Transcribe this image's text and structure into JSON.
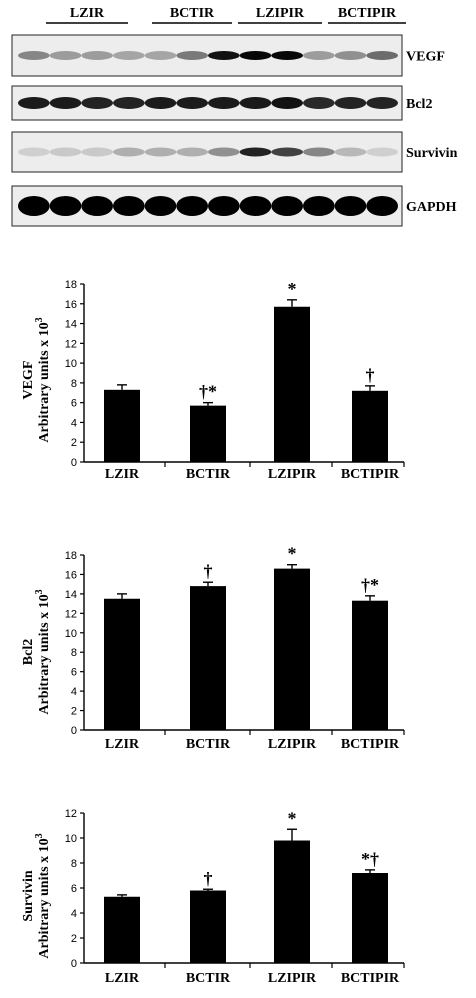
{
  "blot": {
    "group_labels": [
      "LZIR",
      "BCTIR",
      "LZIPIR",
      "BCTIPIR"
    ],
    "bands": [
      {
        "label": "VEGF",
        "intensity": [
          0.55,
          0.45,
          0.45,
          0.4,
          0.4,
          0.6,
          0.95,
          0.98,
          0.98,
          0.45,
          0.5,
          0.65
        ]
      },
      {
        "label": "Bcl2",
        "intensity": [
          0.92,
          0.92,
          0.9,
          0.9,
          0.92,
          0.92,
          0.92,
          0.92,
          0.95,
          0.88,
          0.9,
          0.9
        ]
      },
      {
        "label": "Survivin",
        "intensity": [
          0.15,
          0.2,
          0.2,
          0.35,
          0.35,
          0.35,
          0.5,
          0.9,
          0.8,
          0.55,
          0.3,
          0.15
        ]
      },
      {
        "label": "GAPDH",
        "intensity": [
          1.0,
          1.0,
          1.0,
          1.0,
          1.0,
          1.0,
          1.0,
          1.0,
          1.0,
          1.0,
          1.0,
          1.0
        ]
      }
    ]
  },
  "chart_data": [
    {
      "type": "bar",
      "ylabel": [
        "VEGF",
        "Arbitrary units x 10",
        "3"
      ],
      "categories": [
        "LZIR",
        "BCTIR",
        "LZIPIR",
        "BCTIPIR"
      ],
      "values": [
        7.3,
        5.7,
        15.7,
        7.2
      ],
      "errors": [
        0.5,
        0.3,
        0.7,
        0.5
      ],
      "annotations": [
        "",
        "†*",
        "*",
        "†"
      ],
      "ylim": [
        0,
        18
      ],
      "yticks": [
        "0",
        "2",
        "4",
        "6",
        "8",
        "10",
        "12",
        "14",
        "16",
        "18"
      ]
    },
    {
      "type": "bar",
      "ylabel": [
        "Bcl2",
        "Arbitrary units x 10",
        "3"
      ],
      "categories": [
        "LZIR",
        "BCTIR",
        "LZIPIR",
        "BCTIPIR"
      ],
      "values": [
        13.5,
        14.8,
        16.6,
        13.3
      ],
      "errors": [
        0.5,
        0.4,
        0.4,
        0.5
      ],
      "annotations": [
        "",
        "†",
        "*",
        "†*"
      ],
      "ylim": [
        0,
        18
      ],
      "yticks": [
        "0",
        "2",
        "4",
        "6",
        "8",
        "10",
        "12",
        "14",
        "16",
        "18"
      ]
    },
    {
      "type": "bar",
      "ylabel": [
        "Survivin",
        "Arbitrary units x 10",
        "3"
      ],
      "categories": [
        "LZIR",
        "BCTIR",
        "LZIPIR",
        "BCTIPIR"
      ],
      "values": [
        5.3,
        5.8,
        9.8,
        7.2
      ],
      "errors": [
        0.15,
        0.1,
        0.9,
        0.25
      ],
      "annotations": [
        "",
        "†",
        "*",
        "*†"
      ],
      "ylim": [
        0,
        12
      ],
      "yticks": [
        "0",
        "2",
        "4",
        "6",
        "8",
        "10",
        "12"
      ]
    }
  ]
}
